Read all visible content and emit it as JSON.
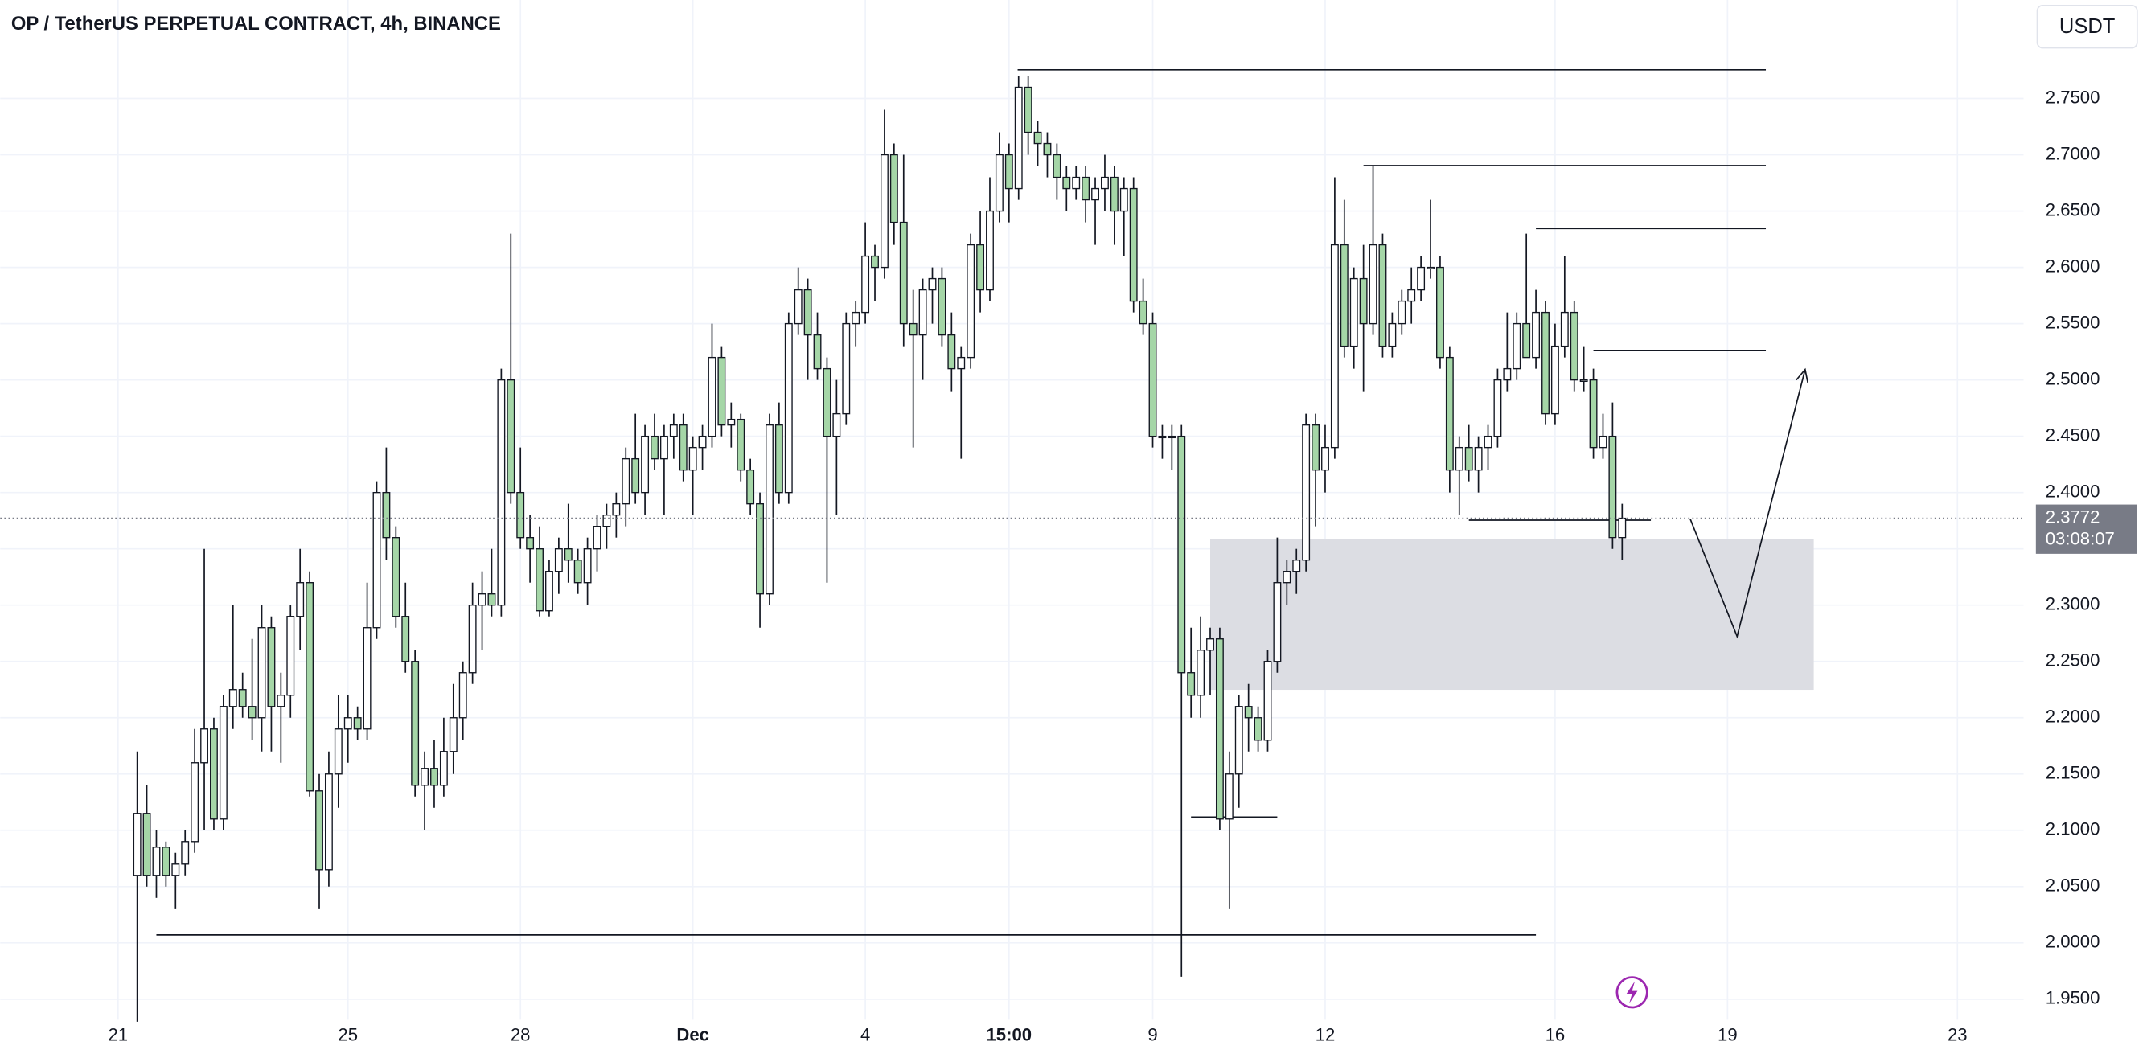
{
  "chart_data": {
    "type": "candlestick",
    "title": "OP / TetherUS PERPETUAL CONTRACT, 4h, BINANCE",
    "currency": "USDT",
    "last_price": 2.3772,
    "countdown": "03:08:07",
    "up_color": "#ffffff",
    "down_color": "#a5d6a7",
    "grid": true,
    "xlim": [
      -12.3,
      198.9
    ],
    "ylim": [
      1.9318,
      2.8375
    ],
    "xticks": [
      {
        "value": 0,
        "label": "21"
      },
      {
        "value": 24,
        "label": "25"
      },
      {
        "value": 42,
        "label": "28"
      },
      {
        "value": 60,
        "label": "Dec"
      },
      {
        "value": 78,
        "label": "4"
      },
      {
        "value": 93,
        "label": "15:00"
      },
      {
        "value": 108,
        "label": "9"
      },
      {
        "value": 126,
        "label": "12"
      },
      {
        "value": 150,
        "label": "16"
      },
      {
        "value": 168,
        "label": "19"
      },
      {
        "value": 192,
        "label": "23"
      }
    ],
    "yticks": [
      {
        "value": 1.95,
        "label": "1.9500"
      },
      {
        "value": 2.0,
        "label": "2.0000"
      },
      {
        "value": 2.05,
        "label": "2.0500"
      },
      {
        "value": 2.1,
        "label": "2.1000"
      },
      {
        "value": 2.15,
        "label": "2.1500"
      },
      {
        "value": 2.2,
        "label": "2.2000"
      },
      {
        "value": 2.25,
        "label": "2.2500"
      },
      {
        "value": 2.3,
        "label": "2.3000"
      },
      {
        "value": 2.35,
        "label": "2.3500"
      },
      {
        "value": 2.4,
        "label": "2.4000"
      },
      {
        "value": 2.45,
        "label": "2.4500"
      },
      {
        "value": 2.5,
        "label": "2.5000"
      },
      {
        "value": 2.55,
        "label": "2.5500"
      },
      {
        "value": 2.6,
        "label": "2.6000"
      },
      {
        "value": 2.65,
        "label": "2.6500"
      },
      {
        "value": 2.7,
        "label": "2.7000"
      },
      {
        "value": 2.75,
        "label": "2.7500"
      }
    ],
    "x": [
      2,
      3,
      4,
      5,
      6,
      7,
      8,
      9,
      10,
      11,
      12,
      13,
      14,
      15,
      16,
      17,
      18,
      19,
      20,
      21,
      22,
      23,
      24,
      25,
      26,
      27,
      28,
      29,
      30,
      31,
      32,
      33,
      34,
      35,
      36,
      37,
      38,
      39,
      40,
      41,
      42,
      43,
      44,
      45,
      46,
      47,
      48,
      49,
      50,
      51,
      52,
      53,
      54,
      55,
      56,
      57,
      58,
      59,
      60,
      61,
      62,
      63,
      64,
      65,
      66,
      67,
      68,
      69,
      70,
      71,
      72,
      73,
      74,
      75,
      76,
      77,
      78,
      79,
      80,
      81,
      82,
      83,
      84,
      85,
      86,
      87,
      88,
      89,
      90,
      91,
      92,
      93,
      94,
      95,
      96,
      97,
      98,
      99,
      100,
      101,
      102,
      103,
      104,
      105,
      106,
      107,
      108,
      109,
      110,
      111,
      112,
      113,
      114,
      115,
      116,
      117,
      118,
      119,
      120,
      121,
      122,
      123,
      124,
      125,
      126,
      127,
      128,
      129,
      130,
      131,
      132,
      133,
      134,
      135,
      136,
      137,
      138,
      139,
      140,
      141,
      142,
      143,
      144,
      145,
      146,
      147,
      148,
      149,
      150,
      151,
      152,
      153,
      154,
      155,
      156,
      157
    ],
    "values": [
      [
        2.06,
        2.17,
        1.93,
        2.115
      ],
      [
        2.115,
        2.14,
        2.05,
        2.06
      ],
      [
        2.06,
        2.1,
        2.04,
        2.085
      ],
      [
        2.085,
        2.09,
        2.05,
        2.06
      ],
      [
        2.06,
        2.08,
        2.03,
        2.07
      ],
      [
        2.07,
        2.1,
        2.06,
        2.09
      ],
      [
        2.09,
        2.19,
        2.08,
        2.16
      ],
      [
        2.16,
        2.35,
        2.1,
        2.19
      ],
      [
        2.19,
        2.2,
        2.1,
        2.11
      ],
      [
        2.11,
        2.22,
        2.1,
        2.21
      ],
      [
        2.21,
        2.3,
        2.19,
        2.225
      ],
      [
        2.225,
        2.24,
        2.2,
        2.21
      ],
      [
        2.21,
        2.27,
        2.18,
        2.2
      ],
      [
        2.2,
        2.3,
        2.17,
        2.28
      ],
      [
        2.28,
        2.29,
        2.17,
        2.21
      ],
      [
        2.21,
        2.24,
        2.16,
        2.22
      ],
      [
        2.22,
        2.3,
        2.2,
        2.29
      ],
      [
        2.29,
        2.35,
        2.26,
        2.32
      ],
      [
        2.32,
        2.33,
        2.13,
        2.135
      ],
      [
        2.135,
        2.15,
        2.03,
        2.065
      ],
      [
        2.065,
        2.17,
        2.05,
        2.15
      ],
      [
        2.15,
        2.22,
        2.12,
        2.19
      ],
      [
        2.19,
        2.22,
        2.16,
        2.2
      ],
      [
        2.2,
        2.21,
        2.18,
        2.19
      ],
      [
        2.19,
        2.32,
        2.18,
        2.28
      ],
      [
        2.28,
        2.41,
        2.27,
        2.4
      ],
      [
        2.4,
        2.44,
        2.34,
        2.36
      ],
      [
        2.36,
        2.37,
        2.28,
        2.29
      ],
      [
        2.29,
        2.32,
        2.24,
        2.25
      ],
      [
        2.25,
        2.26,
        2.13,
        2.14
      ],
      [
        2.14,
        2.17,
        2.1,
        2.155
      ],
      [
        2.155,
        2.18,
        2.12,
        2.14
      ],
      [
        2.14,
        2.2,
        2.13,
        2.17
      ],
      [
        2.17,
        2.23,
        2.15,
        2.2
      ],
      [
        2.2,
        2.25,
        2.18,
        2.24
      ],
      [
        2.24,
        2.32,
        2.23,
        2.3
      ],
      [
        2.3,
        2.33,
        2.26,
        2.31
      ],
      [
        2.31,
        2.35,
        2.29,
        2.3
      ],
      [
        2.3,
        2.51,
        2.29,
        2.5
      ],
      [
        2.5,
        2.63,
        2.39,
        2.4
      ],
      [
        2.4,
        2.44,
        2.35,
        2.36
      ],
      [
        2.36,
        2.38,
        2.32,
        2.35
      ],
      [
        2.35,
        2.37,
        2.29,
        2.295
      ],
      [
        2.295,
        2.34,
        2.29,
        2.33
      ],
      [
        2.33,
        2.36,
        2.31,
        2.35
      ],
      [
        2.35,
        2.39,
        2.32,
        2.34
      ],
      [
        2.34,
        2.35,
        2.31,
        2.32
      ],
      [
        2.32,
        2.36,
        2.3,
        2.35
      ],
      [
        2.35,
        2.38,
        2.33,
        2.37
      ],
      [
        2.37,
        2.39,
        2.35,
        2.38
      ],
      [
        2.38,
        2.4,
        2.36,
        2.39
      ],
      [
        2.39,
        2.44,
        2.37,
        2.43
      ],
      [
        2.43,
        2.47,
        2.39,
        2.4
      ],
      [
        2.4,
        2.46,
        2.38,
        2.45
      ],
      [
        2.45,
        2.47,
        2.42,
        2.43
      ],
      [
        2.43,
        2.46,
        2.38,
        2.45
      ],
      [
        2.45,
        2.47,
        2.43,
        2.46
      ],
      [
        2.46,
        2.47,
        2.41,
        2.42
      ],
      [
        2.42,
        2.45,
        2.38,
        2.44
      ],
      [
        2.44,
        2.46,
        2.42,
        2.45
      ],
      [
        2.45,
        2.55,
        2.44,
        2.52
      ],
      [
        2.52,
        2.53,
        2.45,
        2.46
      ],
      [
        2.46,
        2.48,
        2.44,
        2.465
      ],
      [
        2.465,
        2.47,
        2.41,
        2.42
      ],
      [
        2.42,
        2.43,
        2.38,
        2.39
      ],
      [
        2.39,
        2.4,
        2.28,
        2.31
      ],
      [
        2.31,
        2.47,
        2.3,
        2.46
      ],
      [
        2.46,
        2.48,
        2.39,
        2.4
      ],
      [
        2.4,
        2.56,
        2.39,
        2.55
      ],
      [
        2.55,
        2.6,
        2.54,
        2.58
      ],
      [
        2.58,
        2.59,
        2.5,
        2.54
      ],
      [
        2.54,
        2.56,
        2.5,
        2.51
      ],
      [
        2.51,
        2.52,
        2.32,
        2.45
      ],
      [
        2.45,
        2.5,
        2.38,
        2.47
      ],
      [
        2.47,
        2.56,
        2.46,
        2.55
      ],
      [
        2.55,
        2.57,
        2.53,
        2.56
      ],
      [
        2.56,
        2.64,
        2.55,
        2.61
      ],
      [
        2.61,
        2.62,
        2.57,
        2.6
      ],
      [
        2.6,
        2.74,
        2.59,
        2.7
      ],
      [
        2.7,
        2.71,
        2.62,
        2.64
      ],
      [
        2.64,
        2.7,
        2.53,
        2.55
      ],
      [
        2.55,
        2.58,
        2.44,
        2.54
      ],
      [
        2.54,
        2.59,
        2.5,
        2.58
      ],
      [
        2.58,
        2.6,
        2.55,
        2.59
      ],
      [
        2.59,
        2.6,
        2.53,
        2.54
      ],
      [
        2.54,
        2.56,
        2.49,
        2.51
      ],
      [
        2.51,
        2.53,
        2.43,
        2.52
      ],
      [
        2.52,
        2.63,
        2.51,
        2.62
      ],
      [
        2.62,
        2.65,
        2.56,
        2.58
      ],
      [
        2.58,
        2.68,
        2.57,
        2.65
      ],
      [
        2.65,
        2.72,
        2.64,
        2.7
      ],
      [
        2.7,
        2.71,
        2.64,
        2.67
      ],
      [
        2.67,
        2.77,
        2.66,
        2.76
      ],
      [
        2.76,
        2.77,
        2.7,
        2.72
      ],
      [
        2.72,
        2.73,
        2.69,
        2.71
      ],
      [
        2.71,
        2.72,
        2.68,
        2.7
      ],
      [
        2.7,
        2.71,
        2.66,
        2.68
      ],
      [
        2.68,
        2.69,
        2.65,
        2.67
      ],
      [
        2.67,
        2.69,
        2.66,
        2.68
      ],
      [
        2.68,
        2.69,
        2.64,
        2.66
      ],
      [
        2.66,
        2.68,
        2.62,
        2.67
      ],
      [
        2.67,
        2.7,
        2.65,
        2.68
      ],
      [
        2.68,
        2.69,
        2.62,
        2.65
      ],
      [
        2.65,
        2.68,
        2.61,
        2.67
      ],
      [
        2.67,
        2.68,
        2.56,
        2.57
      ],
      [
        2.57,
        2.59,
        2.54,
        2.55
      ],
      [
        2.55,
        2.56,
        2.44,
        2.45
      ],
      [
        2.45,
        2.46,
        2.43,
        2.45
      ],
      [
        2.45,
        2.46,
        2.42,
        2.45
      ],
      [
        2.45,
        2.46,
        1.97,
        2.24
      ],
      [
        2.24,
        2.28,
        2.2,
        2.22
      ],
      [
        2.22,
        2.29,
        2.2,
        2.26
      ],
      [
        2.26,
        2.28,
        2.22,
        2.27
      ],
      [
        2.27,
        2.28,
        2.1,
        2.11
      ],
      [
        2.11,
        2.17,
        2.03,
        2.15
      ],
      [
        2.15,
        2.22,
        2.12,
        2.21
      ],
      [
        2.21,
        2.23,
        2.17,
        2.2
      ],
      [
        2.2,
        2.21,
        2.17,
        2.18
      ],
      [
        2.18,
        2.26,
        2.17,
        2.25
      ],
      [
        2.25,
        2.36,
        2.24,
        2.32
      ],
      [
        2.32,
        2.34,
        2.3,
        2.33
      ],
      [
        2.33,
        2.35,
        2.31,
        2.34
      ],
      [
        2.34,
        2.47,
        2.33,
        2.46
      ],
      [
        2.46,
        2.47,
        2.37,
        2.42
      ],
      [
        2.42,
        2.46,
        2.4,
        2.44
      ],
      [
        2.44,
        2.68,
        2.43,
        2.62
      ],
      [
        2.62,
        2.66,
        2.52,
        2.53
      ],
      [
        2.53,
        2.6,
        2.51,
        2.59
      ],
      [
        2.59,
        2.62,
        2.49,
        2.55
      ],
      [
        2.55,
        2.69,
        2.54,
        2.62
      ],
      [
        2.62,
        2.63,
        2.52,
        2.53
      ],
      [
        2.53,
        2.56,
        2.52,
        2.55
      ],
      [
        2.55,
        2.58,
        2.54,
        2.57
      ],
      [
        2.57,
        2.6,
        2.55,
        2.58
      ],
      [
        2.58,
        2.61,
        2.57,
        2.6
      ],
      [
        2.6,
        2.66,
        2.59,
        2.6
      ],
      [
        2.6,
        2.61,
        2.51,
        2.52
      ],
      [
        2.52,
        2.53,
        2.4,
        2.42
      ],
      [
        2.42,
        2.45,
        2.38,
        2.44
      ],
      [
        2.44,
        2.46,
        2.41,
        2.42
      ],
      [
        2.42,
        2.45,
        2.4,
        2.44
      ],
      [
        2.44,
        2.46,
        2.42,
        2.45
      ],
      [
        2.45,
        2.51,
        2.44,
        2.5
      ],
      [
        2.5,
        2.56,
        2.49,
        2.51
      ],
      [
        2.51,
        2.56,
        2.5,
        2.55
      ],
      [
        2.55,
        2.63,
        2.52,
        2.52
      ],
      [
        2.52,
        2.58,
        2.51,
        2.56
      ],
      [
        2.56,
        2.57,
        2.46,
        2.47
      ],
      [
        2.47,
        2.55,
        2.46,
        2.53
      ],
      [
        2.53,
        2.61,
        2.52,
        2.56
      ],
      [
        2.56,
        2.57,
        2.49,
        2.5
      ],
      [
        2.5,
        2.53,
        2.49,
        2.5
      ],
      [
        2.5,
        2.51,
        2.43,
        2.44
      ],
      [
        2.44,
        2.47,
        2.43,
        2.45
      ],
      [
        2.45,
        2.48,
        2.35,
        2.36
      ],
      [
        2.36,
        2.39,
        2.34,
        2.3772
      ]
    ],
    "levels": [
      {
        "x": [
          93.9,
          172
        ],
        "price": 2.7755
      },
      {
        "x": [
          130,
          172
        ],
        "price": 2.6904
      },
      {
        "x": [
          148,
          172
        ],
        "price": 2.6345
      },
      {
        "x": [
          154,
          172
        ],
        "price": 2.5263
      },
      {
        "x": [
          141,
          160
        ],
        "price": 2.3755
      },
      {
        "x": [
          112,
          121
        ],
        "price": 2.1117
      },
      {
        "x": [
          4,
          148
        ],
        "price": 2.0071
      }
    ],
    "zone": {
      "x": [
        114,
        177
      ],
      "price": [
        2.3585,
        2.2248
      ]
    },
    "arrow": {
      "x": [
        164.1,
        169,
        176.1
      ],
      "price": [
        2.3767,
        2.2722,
        2.5093
      ]
    }
  }
}
